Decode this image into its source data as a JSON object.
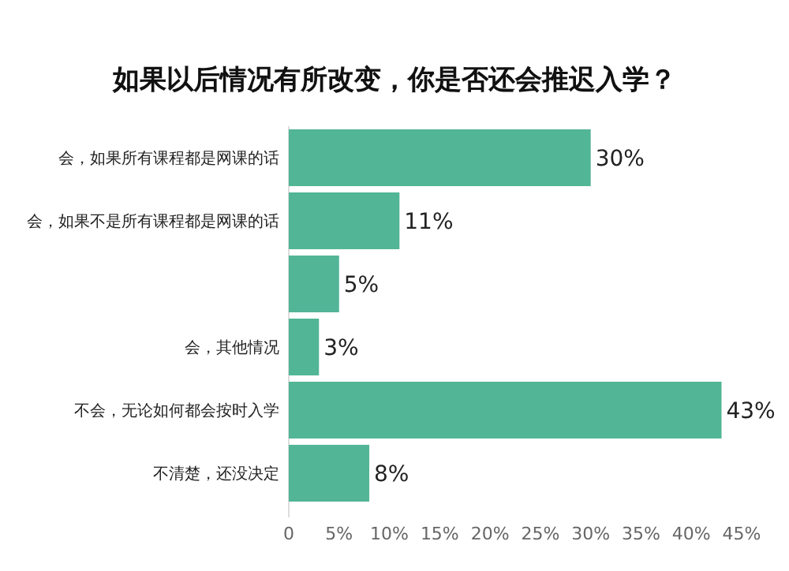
{
  "chart_data": {
    "type": "bar",
    "orientation": "horizontal",
    "title": "如果以后情况有所改变，你是否还会推迟入学？",
    "categories": [
      "会，如果所有课程都是网课的话",
      "会，如果不是所有课程都是网课的话",
      null,
      "会，其他情况",
      "不会，无论如何都会按时入学",
      "不清楚，还没决定"
    ],
    "values": [
      30,
      11,
      5,
      3,
      43,
      8
    ],
    "value_labels": [
      "30%",
      "11%",
      "5%",
      "3%",
      "43%",
      "8%"
    ],
    "color": "#52b596",
    "xlim": [
      0,
      45
    ],
    "xticks": [
      0,
      {
        "value": 5,
        "label": "5%"
      },
      {
        "value": 10,
        "label": "10%"
      },
      {
        "value": 15,
        "label": "15%"
      },
      {
        "value": 20,
        "label": "20%"
      },
      {
        "value": 25,
        "label": "25%"
      },
      {
        "value": 30,
        "label": "30%"
      },
      {
        "value": 35,
        "label": "35%"
      },
      {
        "value": 40,
        "label": "40%"
      },
      {
        "value": 45,
        "label": "45%"
      }
    ]
  }
}
